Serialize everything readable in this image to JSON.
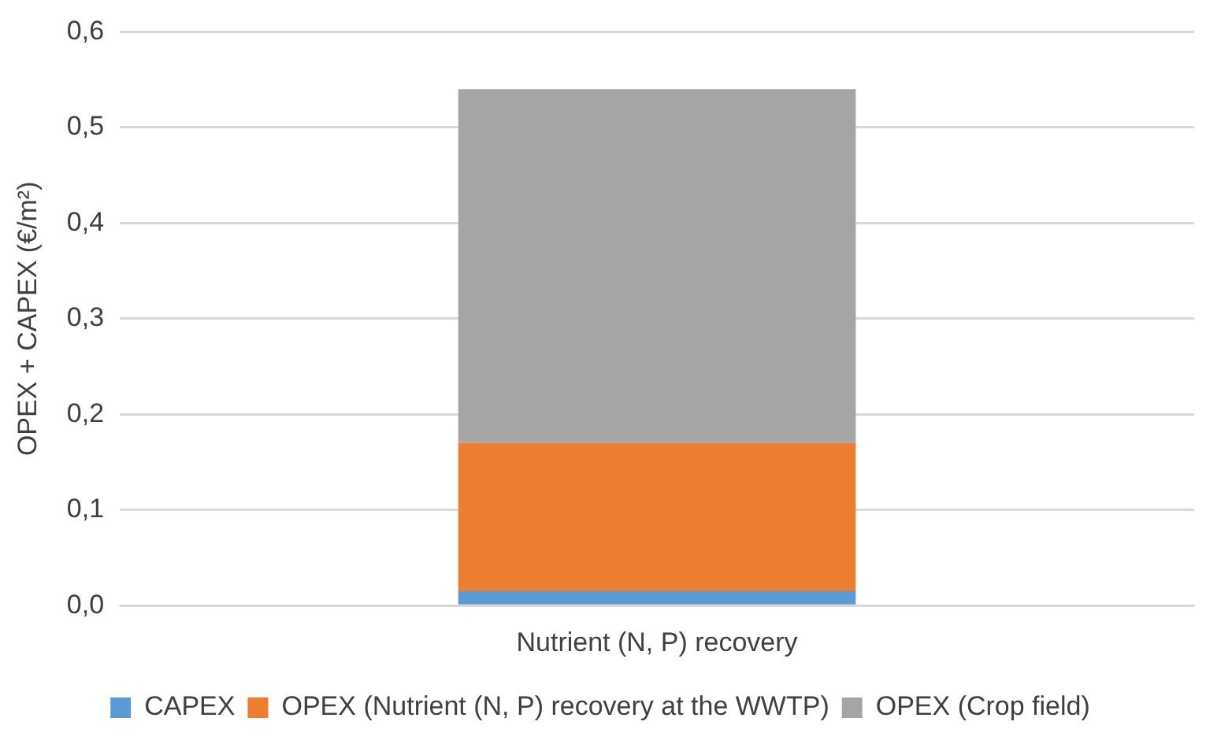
{
  "chart_data": {
    "type": "bar",
    "stacked": true,
    "categories": [
      "Nutrient (N, P) recovery"
    ],
    "ylabel": "OPEX + CAPEX (€/m²)",
    "series": [
      {
        "name": "CAPEX",
        "color": "#5b9bd5",
        "values": [
          0.015
        ]
      },
      {
        "name": "OPEX (Nutrient (N, P) recovery at the WWTP)",
        "color": "#ed7d31",
        "values": [
          0.155
        ]
      },
      {
        "name": "OPEX (Crop field)",
        "color": "#a5a5a5",
        "values": [
          0.37
        ]
      }
    ],
    "ylim": [
      0,
      0.6
    ],
    "yticks": [
      {
        "value": 0,
        "label": "0,0"
      },
      {
        "value": 0.1,
        "label": "0,1"
      },
      {
        "value": 0.2,
        "label": "0,2"
      },
      {
        "value": 0.3,
        "label": "0,3"
      },
      {
        "value": 0.4,
        "label": "0,4"
      },
      {
        "value": 0.5,
        "label": "0,5"
      },
      {
        "value": 0.6,
        "label": "0,6"
      }
    ],
    "grid": "y",
    "legend": "bottom"
  }
}
